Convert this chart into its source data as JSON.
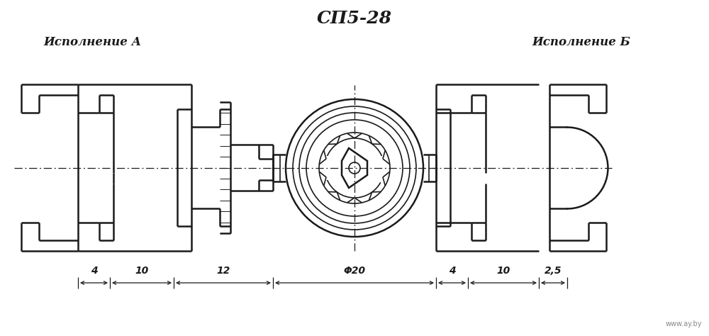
{
  "title": "СП5-28",
  "label_a": "Исполнение А",
  "label_b": "Исполнение Б",
  "dim_a": [
    "4",
    "10",
    "12"
  ],
  "dim_b": [
    "4",
    "10",
    "2,5"
  ],
  "dim_center": "Φ20",
  "bg_color": "#ffffff",
  "line_color": "#1a1a1a",
  "title_fontsize": 18,
  "label_fontsize": 12,
  "dim_fontsize": 10,
  "watermark": "www.ay.by"
}
